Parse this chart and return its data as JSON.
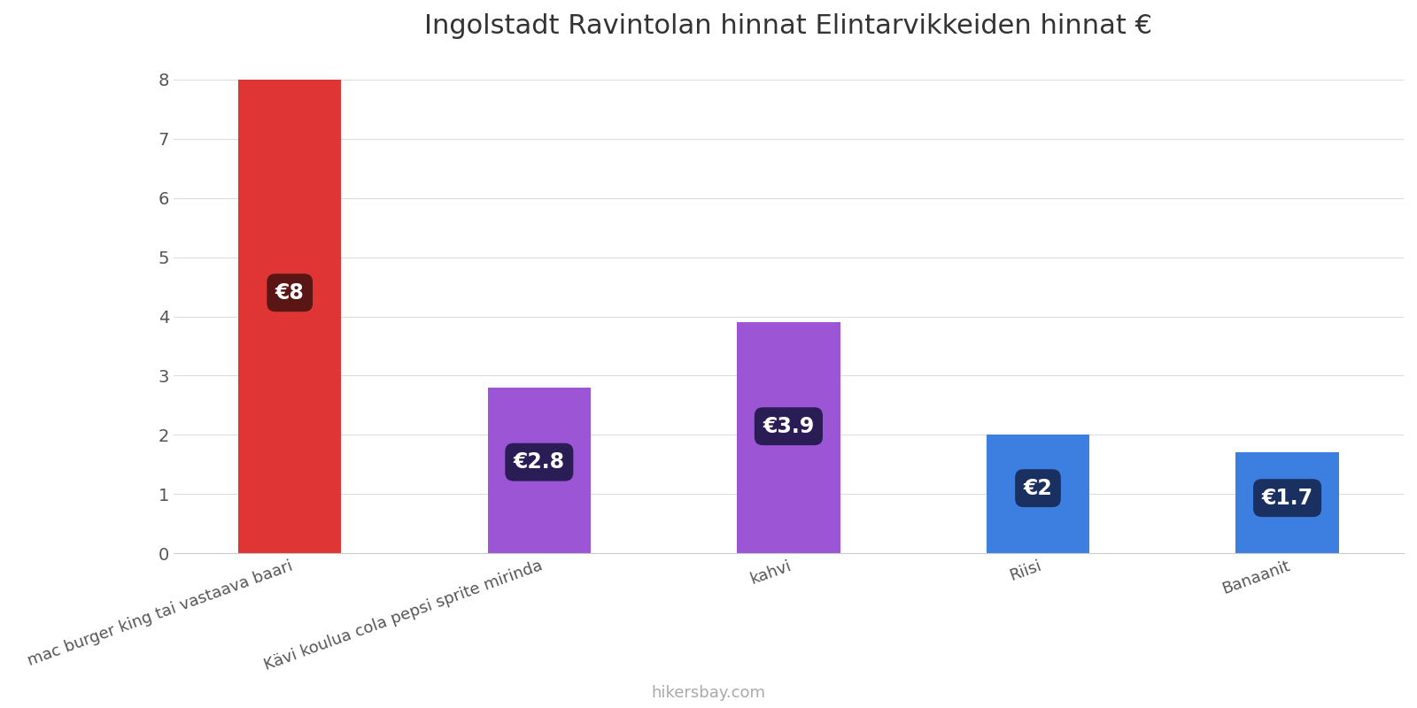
{
  "title": "Ingolstadt Ravintolan hinnat Elintarvikkeiden hinnat €",
  "categories": [
    "mac burger king tai vastaava baari",
    "Kävi koulua cola pepsi sprite mirinda",
    "kahvi",
    "Riisi",
    "Banaanit"
  ],
  "values": [
    8,
    2.8,
    3.9,
    2,
    1.7
  ],
  "bar_colors": [
    "#e03535",
    "#9b55d5",
    "#9b55d5",
    "#3d7fe0",
    "#3d7fe0"
  ],
  "label_texts": [
    "€8",
    "€2.8",
    "€3.9",
    "€2",
    "€1.7"
  ],
  "label_bg_colors": [
    "#5a1515",
    "#2a1d55",
    "#2a1d55",
    "#1a3060",
    "#1a3060"
  ],
  "ylim": [
    0,
    8.4
  ],
  "yticks": [
    0,
    1,
    2,
    3,
    4,
    5,
    6,
    7,
    8
  ],
  "footer_text": "hikersbay.com",
  "background_color": "#ffffff",
  "title_fontsize": 22,
  "label_fontsize": 17,
  "tick_fontsize": 14,
  "footer_fontsize": 13,
  "xlabel_fontsize": 13,
  "bar_width": 0.62,
  "x_positions": [
    0.5,
    2.0,
    3.5,
    5.0,
    6.5
  ]
}
